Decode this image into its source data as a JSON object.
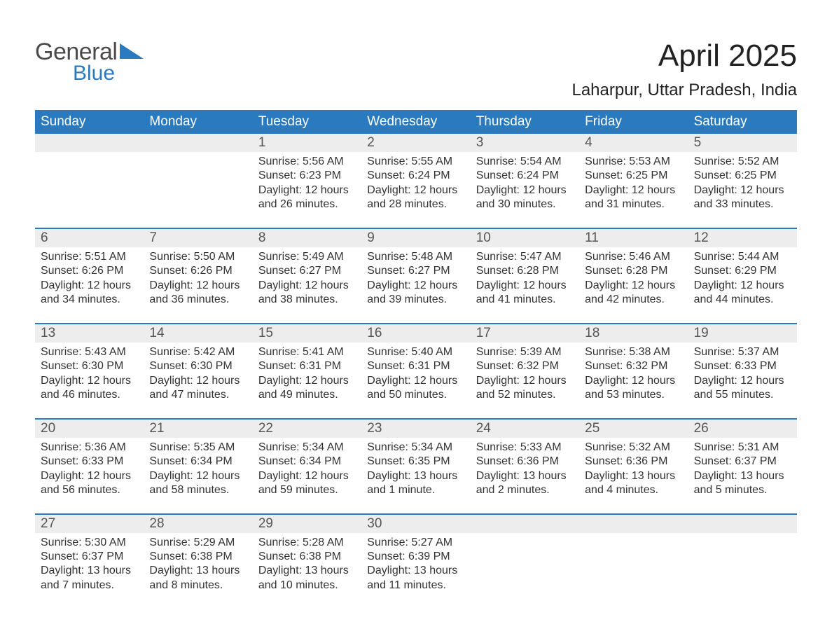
{
  "logo": {
    "text_top": "General",
    "text_bottom": "Blue"
  },
  "title": "April 2025",
  "location": "Laharpur, Uttar Pradesh, India",
  "colors": {
    "header_blue": "#2a7ac0",
    "daynum_bg": "#ededed",
    "text": "#333333",
    "title_text": "#222222",
    "logo_gray": "#4a4a4a"
  },
  "fonts": {
    "family": "Arial",
    "weekday_size": 19,
    "title_size": 44,
    "location_size": 24,
    "body_size": 16
  },
  "weekdays": [
    "Sunday",
    "Monday",
    "Tuesday",
    "Wednesday",
    "Thursday",
    "Friday",
    "Saturday"
  ],
  "weeks": [
    [
      null,
      null,
      {
        "d": "1",
        "sr": "5:56 AM",
        "ss": "6:23 PM",
        "dl": "12 hours and 26 minutes."
      },
      {
        "d": "2",
        "sr": "5:55 AM",
        "ss": "6:24 PM",
        "dl": "12 hours and 28 minutes."
      },
      {
        "d": "3",
        "sr": "5:54 AM",
        "ss": "6:24 PM",
        "dl": "12 hours and 30 minutes."
      },
      {
        "d": "4",
        "sr": "5:53 AM",
        "ss": "6:25 PM",
        "dl": "12 hours and 31 minutes."
      },
      {
        "d": "5",
        "sr": "5:52 AM",
        "ss": "6:25 PM",
        "dl": "12 hours and 33 minutes."
      }
    ],
    [
      {
        "d": "6",
        "sr": "5:51 AM",
        "ss": "6:26 PM",
        "dl": "12 hours and 34 minutes."
      },
      {
        "d": "7",
        "sr": "5:50 AM",
        "ss": "6:26 PM",
        "dl": "12 hours and 36 minutes."
      },
      {
        "d": "8",
        "sr": "5:49 AM",
        "ss": "6:27 PM",
        "dl": "12 hours and 38 minutes."
      },
      {
        "d": "9",
        "sr": "5:48 AM",
        "ss": "6:27 PM",
        "dl": "12 hours and 39 minutes."
      },
      {
        "d": "10",
        "sr": "5:47 AM",
        "ss": "6:28 PM",
        "dl": "12 hours and 41 minutes."
      },
      {
        "d": "11",
        "sr": "5:46 AM",
        "ss": "6:28 PM",
        "dl": "12 hours and 42 minutes."
      },
      {
        "d": "12",
        "sr": "5:44 AM",
        "ss": "6:29 PM",
        "dl": "12 hours and 44 minutes."
      }
    ],
    [
      {
        "d": "13",
        "sr": "5:43 AM",
        "ss": "6:30 PM",
        "dl": "12 hours and 46 minutes."
      },
      {
        "d": "14",
        "sr": "5:42 AM",
        "ss": "6:30 PM",
        "dl": "12 hours and 47 minutes."
      },
      {
        "d": "15",
        "sr": "5:41 AM",
        "ss": "6:31 PM",
        "dl": "12 hours and 49 minutes."
      },
      {
        "d": "16",
        "sr": "5:40 AM",
        "ss": "6:31 PM",
        "dl": "12 hours and 50 minutes."
      },
      {
        "d": "17",
        "sr": "5:39 AM",
        "ss": "6:32 PM",
        "dl": "12 hours and 52 minutes."
      },
      {
        "d": "18",
        "sr": "5:38 AM",
        "ss": "6:32 PM",
        "dl": "12 hours and 53 minutes."
      },
      {
        "d": "19",
        "sr": "5:37 AM",
        "ss": "6:33 PM",
        "dl": "12 hours and 55 minutes."
      }
    ],
    [
      {
        "d": "20",
        "sr": "5:36 AM",
        "ss": "6:33 PM",
        "dl": "12 hours and 56 minutes."
      },
      {
        "d": "21",
        "sr": "5:35 AM",
        "ss": "6:34 PM",
        "dl": "12 hours and 58 minutes."
      },
      {
        "d": "22",
        "sr": "5:34 AM",
        "ss": "6:34 PM",
        "dl": "12 hours and 59 minutes."
      },
      {
        "d": "23",
        "sr": "5:34 AM",
        "ss": "6:35 PM",
        "dl": "13 hours and 1 minute."
      },
      {
        "d": "24",
        "sr": "5:33 AM",
        "ss": "6:36 PM",
        "dl": "13 hours and 2 minutes."
      },
      {
        "d": "25",
        "sr": "5:32 AM",
        "ss": "6:36 PM",
        "dl": "13 hours and 4 minutes."
      },
      {
        "d": "26",
        "sr": "5:31 AM",
        "ss": "6:37 PM",
        "dl": "13 hours and 5 minutes."
      }
    ],
    [
      {
        "d": "27",
        "sr": "5:30 AM",
        "ss": "6:37 PM",
        "dl": "13 hours and 7 minutes."
      },
      {
        "d": "28",
        "sr": "5:29 AM",
        "ss": "6:38 PM",
        "dl": "13 hours and 8 minutes."
      },
      {
        "d": "29",
        "sr": "5:28 AM",
        "ss": "6:38 PM",
        "dl": "13 hours and 10 minutes."
      },
      {
        "d": "30",
        "sr": "5:27 AM",
        "ss": "6:39 PM",
        "dl": "13 hours and 11 minutes."
      },
      null,
      null,
      null
    ]
  ],
  "labels": {
    "sunrise": "Sunrise: ",
    "sunset": "Sunset: ",
    "daylight": "Daylight: "
  }
}
